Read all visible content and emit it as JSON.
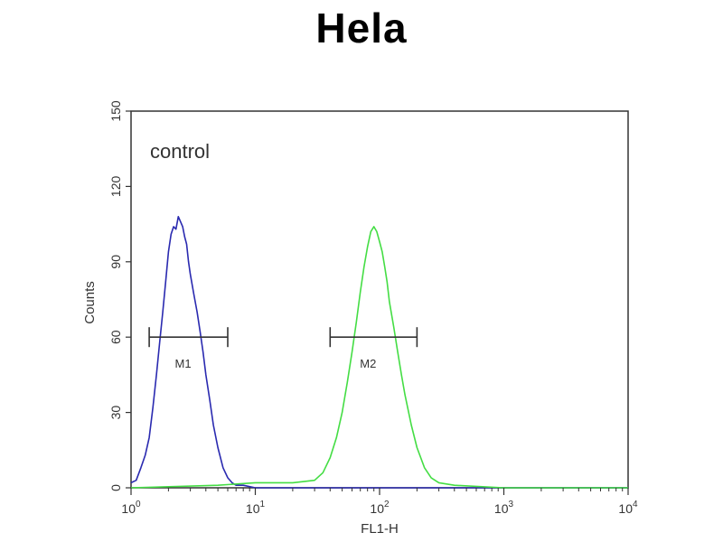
{
  "chart_data": {
    "type": "line",
    "title": "Hela",
    "xlabel": "FL1-H",
    "ylabel": "Counts",
    "x_scale": "log",
    "xlim": [
      1,
      10000
    ],
    "ylim": [
      0,
      150
    ],
    "x_ticks": [
      {
        "value": 1,
        "base": "10",
        "exp": "0"
      },
      {
        "value": 10,
        "base": "10",
        "exp": "1"
      },
      {
        "value": 100,
        "base": "10",
        "exp": "2"
      },
      {
        "value": 1000,
        "base": "10",
        "exp": "3"
      },
      {
        "value": 10000,
        "base": "10",
        "exp": "4"
      }
    ],
    "y_ticks": [
      0,
      30,
      60,
      90,
      120,
      150
    ],
    "annotation": "control",
    "series": [
      {
        "color": "#2a2ab0",
        "x": [
          1.0,
          1.1,
          1.2,
          1.3,
          1.4,
          1.5,
          1.6,
          1.7,
          1.8,
          1.9,
          2.0,
          2.1,
          2.2,
          2.3,
          2.4,
          2.5,
          2.6,
          2.7,
          2.8,
          2.9,
          3.0,
          3.2,
          3.4,
          3.6,
          3.8,
          4.0,
          4.3,
          4.6,
          5.0,
          5.5,
          6.0,
          6.5,
          7.0,
          8.0,
          10,
          20,
          50,
          100,
          1000,
          10000
        ],
        "y": [
          2,
          3,
          8,
          13,
          20,
          32,
          45,
          58,
          70,
          82,
          94,
          101,
          104,
          103,
          108,
          106,
          104,
          100,
          97,
          90,
          85,
          77,
          70,
          62,
          54,
          45,
          35,
          25,
          16,
          8,
          4,
          2,
          1,
          1,
          0,
          0,
          0,
          0,
          0,
          0
        ]
      },
      {
        "color": "#44dd44",
        "x": [
          1,
          5,
          10,
          20,
          30,
          35,
          40,
          45,
          50,
          55,
          60,
          65,
          70,
          75,
          80,
          85,
          90,
          95,
          100,
          105,
          110,
          115,
          120,
          130,
          140,
          150,
          160,
          180,
          200,
          230,
          260,
          300,
          400,
          1000,
          10000
        ],
        "y": [
          0,
          1,
          2,
          2,
          3,
          6,
          12,
          20,
          30,
          42,
          54,
          66,
          78,
          88,
          96,
          102,
          104,
          102,
          98,
          94,
          88,
          82,
          74,
          64,
          54,
          45,
          37,
          25,
          16,
          8,
          4,
          2,
          1,
          0,
          0
        ]
      }
    ],
    "markers": [
      {
        "label": "M1",
        "x_start": 1.4,
        "x_end": 6,
        "y": 60
      },
      {
        "label": "M2",
        "x_start": 40,
        "x_end": 200,
        "y": 60
      }
    ]
  }
}
